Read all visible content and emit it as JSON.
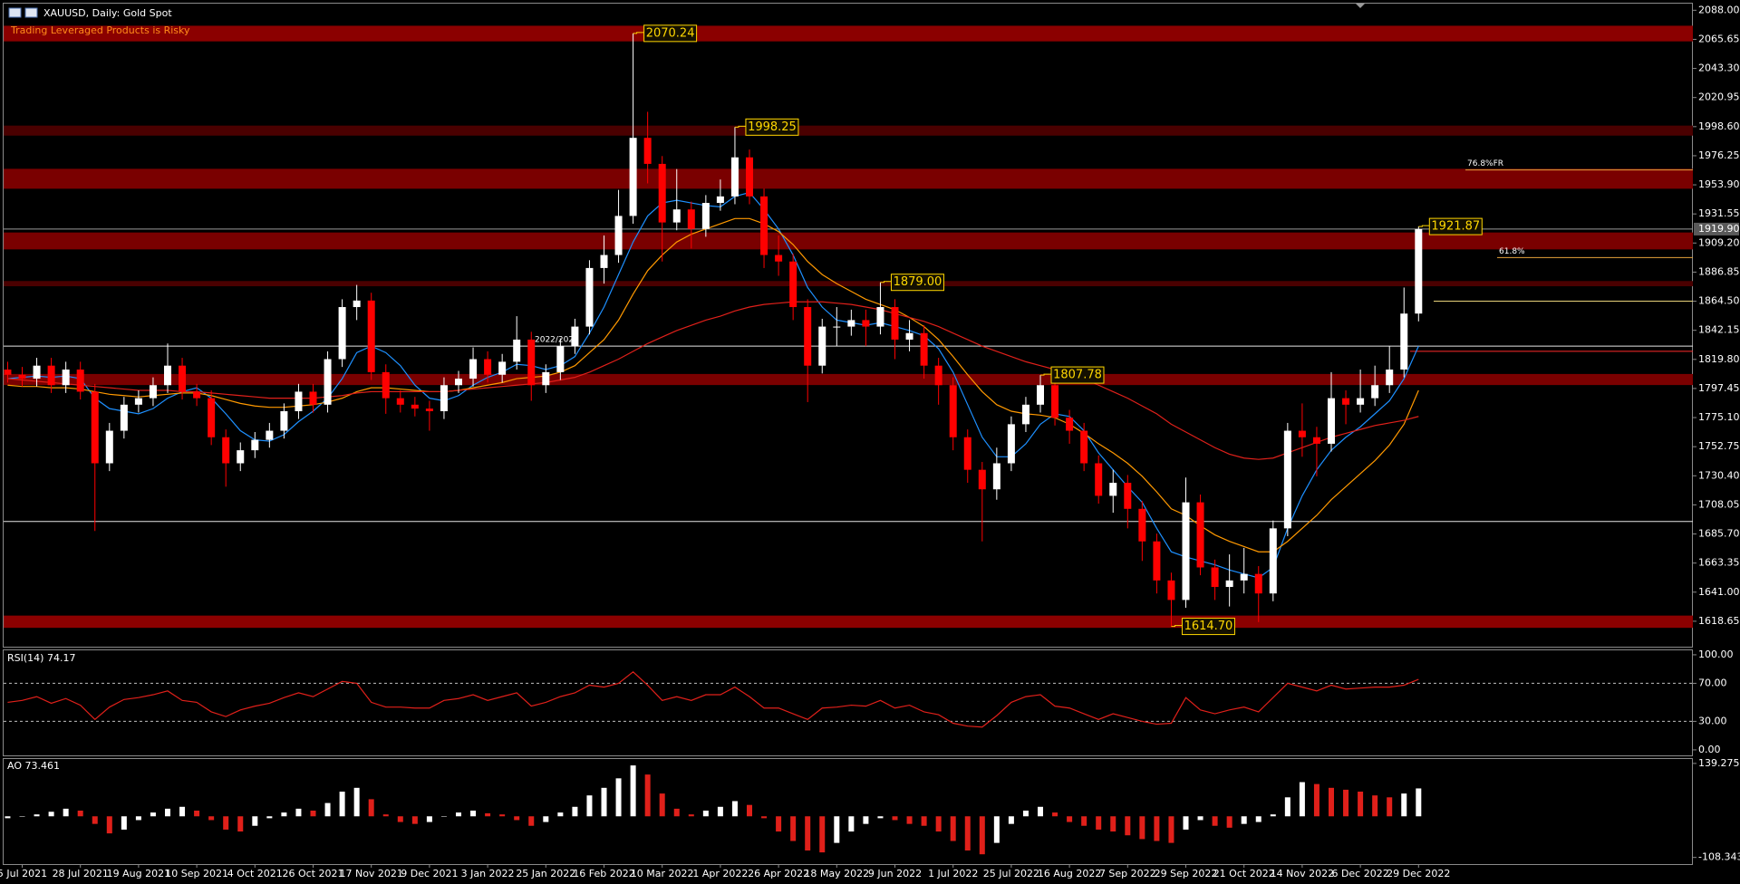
{
  "chart_data": [
    {
      "type": "candlestick",
      "title": "XAUUSD, Daily:  Gold Spot",
      "subtitle": "Trading Leveraged Products is Risky",
      "categories": [
        null,
        "5 Jul 2021",
        null,
        null,
        null,
        "28 Jul 2021",
        null,
        null,
        null,
        "19 Aug 2021",
        null,
        null,
        null,
        "10 Sep 2021",
        null,
        null,
        null,
        "4 Oct 2021",
        null,
        null,
        null,
        "26 Oct 2021",
        null,
        null,
        null,
        "17 Nov 2021",
        null,
        null,
        null,
        "9 Dec 2021",
        null,
        null,
        null,
        "3 Jan 2022",
        null,
        null,
        null,
        "25 Jan 2022",
        null,
        null,
        null,
        "16 Feb 2022",
        null,
        null,
        null,
        "10 Mar 2022",
        null,
        null,
        null,
        "1 Apr 2022",
        null,
        null,
        null,
        "26 Apr 2022",
        null,
        null,
        null,
        "18 May 2022",
        null,
        null,
        null,
        "9 Jun 2022",
        null,
        null,
        null,
        "1 Jul 2022",
        null,
        null,
        null,
        "25 Jul 2022",
        null,
        null,
        null,
        "16 Aug 2022",
        null,
        null,
        null,
        "7 Sep 2022",
        null,
        null,
        null,
        "29 Sep 2022",
        null,
        null,
        null,
        "21 Oct 2022",
        null,
        null,
        null,
        "14 Nov 2022",
        null,
        null,
        null,
        "6 Dec 2022",
        null,
        null,
        null,
        "29 Dec 2022"
      ],
      "open": [
        1812,
        1808,
        1805,
        1815,
        1800,
        1812,
        1795,
        1740,
        1765,
        1785,
        1790,
        1800,
        1815,
        1795,
        1790,
        1760,
        1740,
        1750,
        1758,
        1765,
        1780,
        1795,
        1785,
        1820,
        1860,
        1865,
        1810,
        1790,
        1785,
        1782,
        1780,
        1800,
        1805,
        1820,
        1808,
        1818,
        1835,
        1800,
        1810,
        1830,
        1845,
        1890,
        1900,
        1930,
        1990,
        1970,
        1925,
        1935,
        1920,
        1940,
        1945,
        1975,
        1945,
        1900,
        1895,
        1860,
        1815,
        1845,
        1845,
        1850,
        1845,
        1860,
        1835,
        1840,
        1815,
        1800,
        1760,
        1735,
        1720,
        1740,
        1770,
        1785,
        1800,
        1775,
        1765,
        1740,
        1715,
        1725,
        1705,
        1680,
        1650,
        1635,
        1710,
        1660,
        1645,
        1650,
        1655,
        1640,
        1690,
        1765,
        1760,
        1755,
        1790,
        1785,
        1790,
        1800,
        1812,
        1855
      ],
      "high": [
        1818,
        1814,
        1821,
        1821,
        1818,
        1818,
        1801,
        1771,
        1791,
        1796,
        1806,
        1832,
        1821,
        1801,
        1796,
        1766,
        1756,
        1764,
        1771,
        1786,
        1801,
        1801,
        1826,
        1866,
        1877,
        1871,
        1816,
        1796,
        1791,
        1788,
        1806,
        1811,
        1829,
        1826,
        1824,
        1853,
        1841,
        1816,
        1836,
        1851,
        1896,
        1915,
        1950,
        2070.24,
        2010,
        1976,
        1966,
        1941,
        1946,
        1958,
        1998.25,
        1981,
        1951,
        1915,
        1901,
        1866,
        1851,
        1860,
        1858,
        1858,
        1879,
        1866,
        1850,
        1846,
        1821,
        1806,
        1766,
        1741,
        1752,
        1776,
        1791,
        1807.78,
        1806,
        1781,
        1771,
        1746,
        1735,
        1731,
        1711,
        1686,
        1656,
        1729,
        1716,
        1666,
        1670,
        1675,
        1661,
        1696,
        1771,
        1786,
        1768,
        1810,
        1796,
        1812,
        1815,
        1830,
        1875,
        1921.87
      ],
      "low": [
        1802,
        1799,
        1799,
        1794,
        1794,
        1789,
        1688,
        1734,
        1759,
        1779,
        1784,
        1794,
        1789,
        1784,
        1754,
        1722,
        1734,
        1744,
        1752,
        1759,
        1774,
        1779,
        1779,
        1814,
        1850,
        1804,
        1778,
        1779,
        1776,
        1765,
        1774,
        1794,
        1799,
        1802,
        1802,
        1812,
        1788,
        1794,
        1804,
        1824,
        1839,
        1878,
        1894,
        1924,
        1955,
        1895,
        1919,
        1905,
        1914,
        1934,
        1939,
        1939,
        1890,
        1884,
        1850,
        1787,
        1809,
        1830,
        1838,
        1830,
        1839,
        1820,
        1826,
        1805,
        1785,
        1750,
        1725,
        1680,
        1712,
        1734,
        1764,
        1779,
        1769,
        1755,
        1734,
        1709,
        1702,
        1690,
        1665,
        1640,
        1614.7,
        1629,
        1654,
        1635,
        1630,
        1640,
        1618,
        1634,
        1684,
        1745,
        1730,
        1749,
        1770,
        1779,
        1784,
        1794,
        1806,
        1849
      ],
      "close": [
        1808,
        1805,
        1815,
        1800,
        1812,
        1795,
        1740,
        1765,
        1785,
        1790,
        1800,
        1815,
        1795,
        1790,
        1760,
        1740,
        1750,
        1758,
        1765,
        1780,
        1795,
        1785,
        1820,
        1860,
        1865,
        1810,
        1790,
        1785,
        1782,
        1780,
        1800,
        1805,
        1820,
        1808,
        1818,
        1835,
        1800,
        1810,
        1830,
        1845,
        1890,
        1900,
        1930,
        1990,
        1970,
        1925,
        1935,
        1920,
        1940,
        1945,
        1975,
        1945,
        1900,
        1895,
        1860,
        1815,
        1845,
        1845,
        1850,
        1845,
        1860,
        1835,
        1840,
        1815,
        1800,
        1760,
        1735,
        1720,
        1740,
        1770,
        1785,
        1800,
        1775,
        1765,
        1740,
        1715,
        1725,
        1705,
        1680,
        1650,
        1635,
        1710,
        1660,
        1645,
        1650,
        1655,
        1640,
        1690,
        1765,
        1760,
        1755,
        1790,
        1785,
        1790,
        1800,
        1812,
        1855,
        1919.9
      ],
      "up_color": "#ffffff",
      "down_color": "#ff0000",
      "lines": [
        {
          "color": "#1e90ff",
          "values": [
            1805,
            1806,
            1807,
            1806,
            1807,
            1805,
            1790,
            1782,
            1780,
            1778,
            1782,
            1790,
            1795,
            1798,
            1790,
            1778,
            1765,
            1758,
            1757,
            1762,
            1772,
            1780,
            1790,
            1805,
            1825,
            1830,
            1825,
            1815,
            1800,
            1790,
            1788,
            1792,
            1800,
            1806,
            1810,
            1816,
            1815,
            1812,
            1815,
            1822,
            1840,
            1860,
            1885,
            1910,
            1930,
            1940,
            1942,
            1940,
            1938,
            1937,
            1945,
            1948,
            1935,
            1920,
            1900,
            1875,
            1860,
            1850,
            1848,
            1846,
            1848,
            1845,
            1842,
            1838,
            1828,
            1810,
            1785,
            1760,
            1745,
            1745,
            1755,
            1770,
            1778,
            1776,
            1765,
            1748,
            1735,
            1722,
            1710,
            1690,
            1672,
            1668,
            1665,
            1662,
            1658,
            1655,
            1652,
            1660,
            1690,
            1715,
            1735,
            1750,
            1760,
            1768,
            1778,
            1788,
            1805,
            1830
          ]
        },
        {
          "color": "#ff9900",
          "values": [
            1800,
            1799,
            1799,
            1798,
            1798,
            1797,
            1795,
            1793,
            1792,
            1791,
            1792,
            1793,
            1794,
            1794,
            1792,
            1789,
            1786,
            1784,
            1783,
            1783,
            1784,
            1785,
            1787,
            1790,
            1795,
            1798,
            1798,
            1797,
            1796,
            1795,
            1795,
            1796,
            1798,
            1800,
            1802,
            1805,
            1806,
            1807,
            1810,
            1815,
            1825,
            1835,
            1850,
            1870,
            1888,
            1900,
            1910,
            1916,
            1920,
            1924,
            1928,
            1928,
            1924,
            1918,
            1908,
            1895,
            1885,
            1878,
            1872,
            1866,
            1862,
            1858,
            1852,
            1845,
            1835,
            1822,
            1808,
            1795,
            1785,
            1780,
            1778,
            1777,
            1775,
            1770,
            1763,
            1755,
            1748,
            1740,
            1730,
            1718,
            1705,
            1700,
            1692,
            1685,
            1680,
            1676,
            1672,
            1672,
            1680,
            1690,
            1700,
            1712,
            1722,
            1732,
            1742,
            1754,
            1770,
            1796
          ]
        },
        {
          "color": "#e0201a",
          "values": [
            1805,
            1804,
            1803,
            1802,
            1801,
            1800,
            1799,
            1798,
            1797,
            1796,
            1796,
            1796,
            1795,
            1795,
            1794,
            1793,
            1792,
            1791,
            1790,
            1790,
            1790,
            1790,
            1791,
            1792,
            1794,
            1795,
            1795,
            1795,
            1795,
            1795,
            1795,
            1796,
            1797,
            1798,
            1799,
            1800,
            1801,
            1802,
            1804,
            1806,
            1810,
            1815,
            1820,
            1826,
            1832,
            1837,
            1842,
            1846,
            1850,
            1853,
            1857,
            1860,
            1862,
            1863,
            1864,
            1864,
            1864,
            1863,
            1862,
            1860,
            1858,
            1855,
            1852,
            1849,
            1845,
            1840,
            1835,
            1830,
            1826,
            1822,
            1818,
            1815,
            1812,
            1808,
            1805,
            1800,
            1795,
            1790,
            1784,
            1778,
            1770,
            1764,
            1758,
            1752,
            1747,
            1744,
            1743,
            1744,
            1748,
            1752,
            1756,
            1760,
            1763,
            1766,
            1769,
            1771,
            1773,
            1776
          ]
        }
      ],
      "ylim": [
        1599.1,
        2093.1
      ],
      "yticks": [
        {
          "value": 2088,
          "label": "2088.00"
        },
        2065.65,
        {
          "value": 2043.3,
          "label": "2043.30"
        },
        2020.95,
        {
          "value": 1998.6,
          "label": "1998.60"
        },
        1976.25,
        {
          "value": 1953.9,
          "label": "1953.90"
        },
        1931.55,
        {
          "value": 1909.2,
          "label": "1909.20"
        },
        1886.85,
        {
          "value": 1864.5,
          "label": "1864.50"
        },
        1842.15,
        {
          "value": 1819.8,
          "label": "1819.80"
        },
        1797.45,
        {
          "value": 1775.1,
          "label": "1775.10"
        },
        1752.75,
        {
          "value": 1730.4,
          "label": "1730.40"
        },
        1708.05,
        {
          "value": 1685.7,
          "label": "1685.70"
        },
        1663.35,
        {
          "value": 1641,
          "label": "1641.00"
        },
        1618.65
      ],
      "last_price": {
        "value": 1919.9,
        "label": "1919.90"
      },
      "bands": [
        {
          "low": 2064.1,
          "high": 2076.1,
          "color": "#8b0000"
        },
        {
          "low": 1991.7,
          "high": 1999.4,
          "color": "#4a0000"
        },
        {
          "low": 1950.9,
          "high": 1966.2,
          "color": "#7a0000"
        },
        {
          "low": 1904.3,
          "high": 1917.3,
          "color": "#7a0000"
        },
        {
          "low": 1876,
          "high": 1880,
          "color": "#4a0000"
        },
        {
          "low": 1800.1,
          "high": 1808.6,
          "color": "#7a0000"
        },
        {
          "low": 1613.6,
          "high": 1623,
          "color": "#8b0000"
        }
      ],
      "hlines": [
        {
          "value": 1919.9,
          "color": "#9a9a9a"
        },
        {
          "value": 1695.3,
          "color": "#e6e6e6"
        },
        {
          "value": 1826,
          "color": "#ff2a2a"
        },
        {
          "value": 1864.5,
          "color": "#e8d27a"
        }
      ],
      "note": {
        "value": 1830,
        "label": "2022/202",
        "color": "#e6e6e6"
      },
      "fib_levels": [
        {
          "value": 1965.3,
          "label": "76.8%FR",
          "color": "#e6a23c"
        },
        {
          "value": 1898,
          "label": "61.8%",
          "color": "#e6a23c"
        }
      ],
      "annotations": [
        {
          "value": 2070.24,
          "label": "2070.24"
        },
        {
          "value": 1998.25,
          "label": "1998.25"
        },
        {
          "value": 1879,
          "label": "1879.00"
        },
        {
          "value": 1807.78,
          "label": "1807.78"
        },
        {
          "value": 1614.7,
          "label": "1614.70"
        },
        {
          "value": 1921.87,
          "label": "1921.87"
        }
      ],
      "annotation_color": "#ffd700"
    },
    {
      "type": "line",
      "title": "RSI(14) 74.17",
      "color": "#e0201a",
      "values": [
        50,
        52,
        56,
        49,
        54,
        47,
        32,
        45,
        53,
        55,
        58,
        62,
        52,
        50,
        40,
        35,
        42,
        46,
        49,
        55,
        60,
        56,
        64,
        72,
        70,
        50,
        45,
        45,
        44,
        44,
        52,
        54,
        58,
        52,
        56,
        60,
        46,
        50,
        56,
        60,
        68,
        66,
        70,
        82,
        68,
        52,
        56,
        52,
        58,
        58,
        66,
        56,
        44,
        44,
        38,
        32,
        44,
        45,
        47,
        46,
        52,
        44,
        47,
        40,
        37,
        28,
        25,
        24,
        36,
        50,
        56,
        58,
        46,
        44,
        38,
        32,
        38,
        34,
        30,
        27,
        28,
        55,
        42,
        38,
        42,
        45,
        40,
        55,
        70,
        66,
        62,
        68,
        64,
        65,
        66,
        66,
        68,
        74.17
      ],
      "ylim": [
        -5.8,
        104.7
      ],
      "yticks": [
        {
          "value": 100,
          "label": "100.00"
        },
        {
          "value": 70,
          "label": "70.00"
        },
        {
          "value": 30,
          "label": "30.00"
        },
        {
          "value": 0,
          "label": "0.00"
        }
      ],
      "levels": [
        70,
        30
      ]
    },
    {
      "type": "bar",
      "title": "AO 73.461",
      "up_color": "#ffffff",
      "down_color": "#e0201a",
      "values": [
        -5,
        0,
        5,
        12,
        20,
        15,
        -20,
        -45,
        -35,
        -10,
        10,
        20,
        25,
        15,
        -10,
        -35,
        -40,
        -25,
        -5,
        10,
        20,
        15,
        35,
        65,
        75,
        45,
        5,
        -15,
        -20,
        -15,
        0,
        10,
        15,
        8,
        5,
        -10,
        -25,
        -15,
        10,
        25,
        55,
        75,
        100,
        134,
        110,
        60,
        20,
        5,
        15,
        25,
        40,
        30,
        -5,
        -40,
        -65,
        -90,
        -95,
        -70,
        -40,
        -20,
        -5,
        -10,
        -20,
        -25,
        -40,
        -65,
        -90,
        -100,
        -70,
        -20,
        15,
        25,
        10,
        -15,
        -25,
        -35,
        -40,
        -50,
        -60,
        -65,
        -70,
        -35,
        -10,
        -25,
        -30,
        -20,
        -15,
        5,
        50,
        90,
        85,
        75,
        70,
        65,
        55,
        50,
        60,
        73.461
      ],
      "ylim": [
        -125.8,
        150.9
      ],
      "yticks": [
        139.275,
        -108.343
      ]
    }
  ]
}
